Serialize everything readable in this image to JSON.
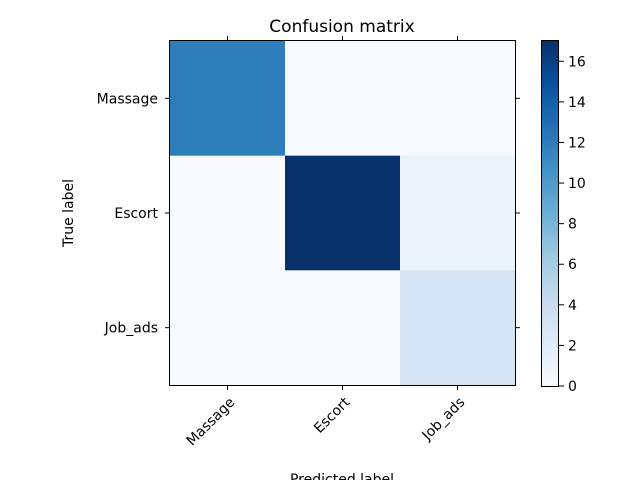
{
  "chart_data": {
    "type": "heatmap",
    "title": "Confusion matrix",
    "xlabel": "Predicted label",
    "ylabel": "True label",
    "x_categories": [
      "Massage",
      "Escort",
      "Job_ads"
    ],
    "y_categories": [
      "Massage",
      "Escort",
      "Job_ads"
    ],
    "matrix": [
      [
        12,
        0,
        0
      ],
      [
        0,
        17,
        1
      ],
      [
        0,
        0,
        3
      ]
    ],
    "colormap": "Blues",
    "color_range": [
      0,
      17
    ],
    "colorbar_ticks": [
      "0",
      "2",
      "4",
      "6",
      "8",
      "10",
      "12",
      "14",
      "16"
    ]
  }
}
